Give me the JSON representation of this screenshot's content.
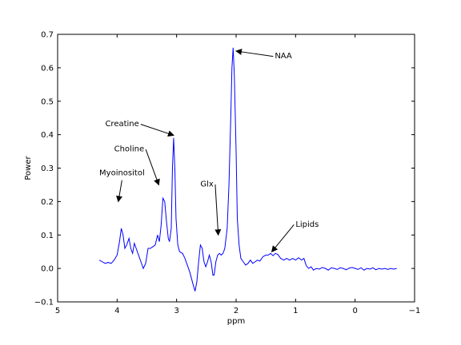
{
  "chart_data": {
    "type": "line",
    "title": "",
    "xlabel": "ppm",
    "ylabel": "Power",
    "xlim": [
      5,
      -1
    ],
    "ylim": [
      -0.1,
      0.7
    ],
    "x_inverted": true,
    "grid": false,
    "xticks": [
      5,
      4,
      3,
      2,
      1,
      0,
      -1
    ],
    "xtick_labels": [
      "5",
      "4",
      "3",
      "2",
      "1",
      "0",
      "−1"
    ],
    "yticks": [
      -0.1,
      0.0,
      0.1,
      0.2,
      0.3,
      0.4,
      0.5,
      0.6,
      0.7
    ],
    "ytick_labels": [
      "−0.1",
      "0.0",
      "0.1",
      "0.2",
      "0.3",
      "0.4",
      "0.5",
      "0.6",
      "0.7"
    ],
    "series": [
      {
        "color": "#0000ff",
        "points": [
          [
            4.3,
            0.025
          ],
          [
            4.25,
            0.02
          ],
          [
            4.2,
            0.015
          ],
          [
            4.15,
            0.018
          ],
          [
            4.1,
            0.015
          ],
          [
            4.05,
            0.025
          ],
          [
            4.0,
            0.04
          ],
          [
            3.96,
            0.08
          ],
          [
            3.93,
            0.12
          ],
          [
            3.9,
            0.1
          ],
          [
            3.87,
            0.06
          ],
          [
            3.84,
            0.07
          ],
          [
            3.8,
            0.09
          ],
          [
            3.77,
            0.06
          ],
          [
            3.74,
            0.045
          ],
          [
            3.71,
            0.075
          ],
          [
            3.68,
            0.06
          ],
          [
            3.65,
            0.045
          ],
          [
            3.6,
            0.02
          ],
          [
            3.56,
            0.0
          ],
          [
            3.52,
            0.015
          ],
          [
            3.48,
            0.06
          ],
          [
            3.44,
            0.06
          ],
          [
            3.4,
            0.065
          ],
          [
            3.36,
            0.07
          ],
          [
            3.32,
            0.1
          ],
          [
            3.29,
            0.08
          ],
          [
            3.26,
            0.13
          ],
          [
            3.23,
            0.21
          ],
          [
            3.2,
            0.2
          ],
          [
            3.17,
            0.14
          ],
          [
            3.14,
            0.09
          ],
          [
            3.12,
            0.08
          ],
          [
            3.09,
            0.12
          ],
          [
            3.07,
            0.3
          ],
          [
            3.05,
            0.39
          ],
          [
            3.03,
            0.3
          ],
          [
            3.01,
            0.15
          ],
          [
            2.98,
            0.07
          ],
          [
            2.95,
            0.05
          ],
          [
            2.9,
            0.045
          ],
          [
            2.86,
            0.03
          ],
          [
            2.82,
            0.01
          ],
          [
            2.78,
            -0.01
          ],
          [
            2.75,
            -0.03
          ],
          [
            2.72,
            -0.05
          ],
          [
            2.69,
            -0.068
          ],
          [
            2.66,
            -0.04
          ],
          [
            2.63,
            0.02
          ],
          [
            2.6,
            0.07
          ],
          [
            2.57,
            0.06
          ],
          [
            2.54,
            0.02
          ],
          [
            2.51,
            0.005
          ],
          [
            2.48,
            0.02
          ],
          [
            2.45,
            0.04
          ],
          [
            2.42,
            0.02
          ],
          [
            2.39,
            -0.02
          ],
          [
            2.37,
            -0.02
          ],
          [
            2.34,
            0.02
          ],
          [
            2.31,
            0.04
          ],
          [
            2.28,
            0.045
          ],
          [
            2.25,
            0.04
          ],
          [
            2.22,
            0.045
          ],
          [
            2.19,
            0.06
          ],
          [
            2.15,
            0.12
          ],
          [
            2.12,
            0.25
          ],
          [
            2.09,
            0.45
          ],
          [
            2.07,
            0.6
          ],
          [
            2.05,
            0.66
          ],
          [
            2.03,
            0.58
          ],
          [
            2.0,
            0.35
          ],
          [
            1.98,
            0.15
          ],
          [
            1.95,
            0.07
          ],
          [
            1.92,
            0.03
          ],
          [
            1.88,
            0.02
          ],
          [
            1.84,
            0.01
          ],
          [
            1.8,
            0.015
          ],
          [
            1.76,
            0.025
          ],
          [
            1.72,
            0.015
          ],
          [
            1.68,
            0.02
          ],
          [
            1.64,
            0.025
          ],
          [
            1.6,
            0.022
          ],
          [
            1.55,
            0.035
          ],
          [
            1.5,
            0.04
          ],
          [
            1.46,
            0.04
          ],
          [
            1.42,
            0.045
          ],
          [
            1.38,
            0.038
          ],
          [
            1.34,
            0.045
          ],
          [
            1.3,
            0.042
          ],
          [
            1.25,
            0.03
          ],
          [
            1.2,
            0.025
          ],
          [
            1.15,
            0.03
          ],
          [
            1.1,
            0.025
          ],
          [
            1.05,
            0.03
          ],
          [
            1.0,
            0.025
          ],
          [
            0.95,
            0.032
          ],
          [
            0.9,
            0.025
          ],
          [
            0.86,
            0.03
          ],
          [
            0.82,
            0.008
          ],
          [
            0.78,
            0.0
          ],
          [
            0.74,
            0.005
          ],
          [
            0.7,
            -0.005
          ],
          [
            0.65,
            0.0
          ],
          [
            0.6,
            -0.002
          ],
          [
            0.55,
            0.003
          ],
          [
            0.5,
            0.0
          ],
          [
            0.45,
            -0.005
          ],
          [
            0.4,
            0.002
          ],
          [
            0.35,
            0.0
          ],
          [
            0.3,
            -0.003
          ],
          [
            0.25,
            0.002
          ],
          [
            0.2,
            0.0
          ],
          [
            0.15,
            -0.004
          ],
          [
            0.1,
            0.001
          ],
          [
            0.05,
            0.003
          ],
          [
            0.0,
            0.0
          ],
          [
            -0.05,
            -0.003
          ],
          [
            -0.1,
            0.002
          ],
          [
            -0.15,
            -0.005
          ],
          [
            -0.2,
            0.0
          ],
          [
            -0.25,
            -0.002
          ],
          [
            -0.3,
            0.002
          ],
          [
            -0.35,
            -0.004
          ],
          [
            -0.4,
            0.0
          ],
          [
            -0.45,
            -0.002
          ],
          [
            -0.5,
            0.0
          ],
          [
            -0.55,
            -0.003
          ],
          [
            -0.6,
            0.0
          ],
          [
            -0.65,
            -0.002
          ],
          [
            -0.7,
            0.0
          ]
        ]
      }
    ],
    "annotations": [
      {
        "text": "NAA",
        "label_x": 1.35,
        "label_y": 0.628,
        "arrow_x": 2.0,
        "arrow_y": 0.65
      },
      {
        "text": "Creatine",
        "label_x": 4.2,
        "label_y": 0.425,
        "arrow_x": 3.05,
        "arrow_y": 0.398
      },
      {
        "text": "Choline",
        "label_x": 4.05,
        "label_y": 0.35,
        "arrow_x": 3.3,
        "arrow_y": 0.25
      },
      {
        "text": "Myoinositol",
        "label_x": 4.3,
        "label_y": 0.278,
        "arrow_x": 3.98,
        "arrow_y": 0.2
      },
      {
        "text": "Glx",
        "label_x": 2.6,
        "label_y": 0.245,
        "arrow_x": 2.3,
        "arrow_y": 0.1
      },
      {
        "text": "Lipids",
        "label_x": 1.0,
        "label_y": 0.125,
        "arrow_x": 1.4,
        "arrow_y": 0.05
      }
    ]
  }
}
